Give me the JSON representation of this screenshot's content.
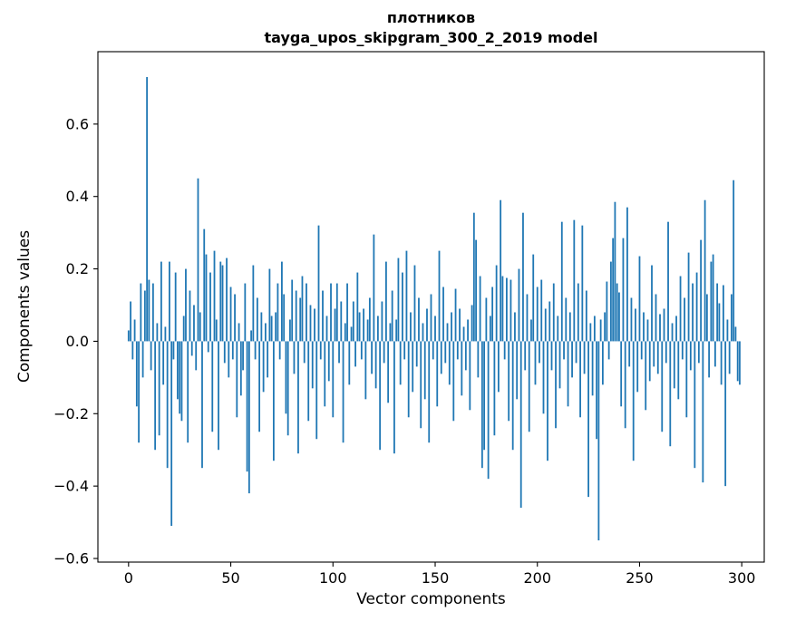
{
  "figure": {
    "background": "#ffffff"
  },
  "title": {
    "line1": "плотников",
    "line2": "tayga_upos_skipgram_300_2_2019 model"
  },
  "chart_data": {
    "type": "bar",
    "title": "плотников — tayga_upos_skipgram_300_2_2019 model",
    "xlabel": "Vector components",
    "ylabel": "Components values",
    "xlim": [
      -15,
      311
    ],
    "ylim": [
      -0.61,
      0.8
    ],
    "xticks": [
      0,
      50,
      100,
      150,
      200,
      250,
      300
    ],
    "yticks": [
      -0.6,
      -0.4,
      -0.2,
      0.0,
      0.2,
      0.4,
      0.6
    ],
    "grid": false,
    "legend": "none",
    "bar_color": "#1f77b4",
    "bar_width": 0.8,
    "values": [
      0.03,
      0.11,
      -0.05,
      0.06,
      -0.18,
      -0.28,
      0.16,
      -0.1,
      0.14,
      0.73,
      0.17,
      -0.08,
      0.16,
      -0.3,
      0.05,
      -0.26,
      0.22,
      -0.12,
      0.04,
      -0.35,
      0.22,
      -0.51,
      -0.05,
      0.19,
      -0.16,
      -0.2,
      -0.22,
      0.07,
      0.2,
      -0.28,
      0.14,
      -0.04,
      0.1,
      -0.08,
      0.45,
      0.08,
      -0.35,
      0.31,
      0.24,
      -0.03,
      0.19,
      -0.25,
      0.25,
      0.06,
      -0.3,
      0.22,
      0.21,
      -0.06,
      0.23,
      -0.1,
      0.15,
      -0.05,
      0.13,
      -0.21,
      0.05,
      -0.15,
      -0.08,
      0.16,
      -0.36,
      -0.42,
      0.03,
      0.21,
      -0.05,
      0.12,
      -0.25,
      0.08,
      -0.14,
      0.05,
      -0.1,
      0.2,
      0.07,
      -0.33,
      0.08,
      0.16,
      -0.05,
      0.22,
      0.13,
      -0.2,
      -0.26,
      0.06,
      0.17,
      -0.09,
      0.14,
      -0.31,
      0.12,
      0.18,
      -0.06,
      0.16,
      -0.22,
      0.1,
      -0.13,
      0.09,
      -0.27,
      0.32,
      -0.05,
      0.14,
      -0.18,
      0.07,
      -0.11,
      0.16,
      -0.21,
      0.09,
      0.16,
      -0.06,
      0.11,
      -0.28,
      0.05,
      0.16,
      -0.12,
      0.04,
      0.11,
      -0.07,
      0.19,
      0.08,
      -0.05,
      0.09,
      -0.16,
      0.06,
      0.12,
      -0.09,
      0.295,
      -0.13,
      0.07,
      -0.3,
      0.11,
      -0.06,
      0.22,
      -0.17,
      0.05,
      0.14,
      -0.31,
      0.06,
      0.23,
      -0.12,
      0.19,
      -0.05,
      0.25,
      -0.21,
      0.08,
      -0.14,
      0.21,
      -0.07,
      0.12,
      -0.24,
      0.05,
      -0.16,
      0.09,
      -0.28,
      0.13,
      -0.05,
      0.07,
      -0.18,
      0.25,
      -0.09,
      0.15,
      -0.06,
      0.05,
      -0.12,
      0.08,
      -0.22,
      0.145,
      -0.05,
      0.09,
      -0.15,
      0.04,
      -0.08,
      0.06,
      -0.19,
      0.1,
      0.355,
      0.28,
      -0.1,
      0.18,
      -0.35,
      -0.3,
      0.12,
      -0.38,
      0.07,
      0.15,
      -0.26,
      0.21,
      -0.14,
      0.39,
      0.18,
      -0.05,
      0.175,
      -0.22,
      0.17,
      -0.3,
      0.08,
      -0.16,
      0.2,
      -0.46,
      0.355,
      -0.08,
      0.13,
      -0.25,
      0.06,
      0.24,
      -0.12,
      0.15,
      -0.06,
      0.17,
      -0.2,
      0.09,
      -0.33,
      0.11,
      -0.08,
      0.16,
      -0.24,
      0.07,
      -0.13,
      0.33,
      -0.05,
      0.12,
      -0.18,
      0.08,
      -0.1,
      0.335,
      -0.06,
      0.16,
      -0.21,
      0.32,
      -0.09,
      0.14,
      -0.43,
      0.05,
      -0.15,
      0.07,
      -0.27,
      -0.55,
      0.06,
      -0.12,
      0.08,
      0.165,
      -0.05,
      0.22,
      0.285,
      0.385,
      0.16,
      0.135,
      -0.18,
      0.285,
      -0.24,
      0.37,
      -0.07,
      0.12,
      -0.33,
      0.09,
      -0.14,
      0.235,
      -0.05,
      0.08,
      -0.19,
      0.06,
      -0.11,
      0.21,
      -0.07,
      0.13,
      -0.09,
      0.075,
      -0.25,
      0.09,
      -0.06,
      0.33,
      -0.29,
      0.05,
      -0.13,
      0.07,
      -0.16,
      0.18,
      -0.05,
      0.12,
      -0.21,
      0.245,
      -0.08,
      0.16,
      -0.35,
      0.19,
      -0.06,
      0.28,
      -0.39,
      0.39,
      0.13,
      -0.1,
      0.22,
      0.24,
      -0.07,
      0.16,
      0.105,
      -0.12,
      0.155,
      -0.4,
      0.06,
      -0.09,
      0.13,
      0.445,
      0.04,
      -0.11,
      -0.12
    ]
  }
}
